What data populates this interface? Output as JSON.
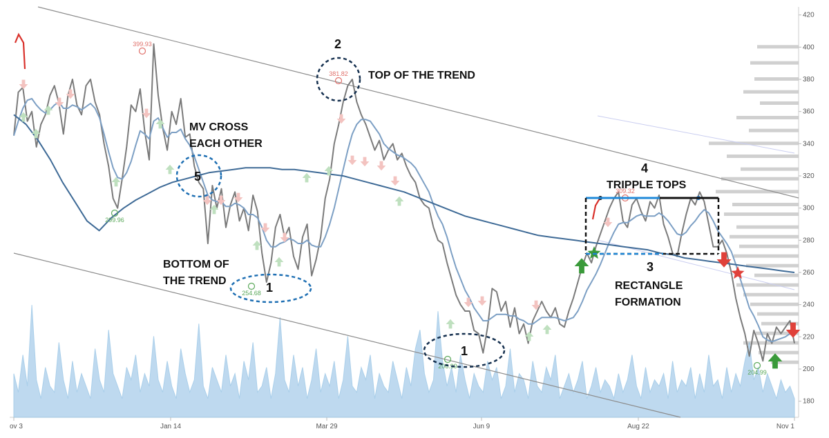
{
  "chart_data": {
    "type": "line",
    "title": "",
    "xlabel": "",
    "ylabel": "",
    "x_ticks": [
      "ov 3",
      "Jan 14",
      "Mar 29",
      "Jun 9",
      "Aug 22",
      "Nov 1"
    ],
    "ylim": [
      170,
      425
    ],
    "y_ticks": [
      "180",
      "200",
      "220",
      "240",
      "260",
      "280",
      "300",
      "320",
      "340",
      "360",
      "380",
      "400",
      "420"
    ],
    "grid": false,
    "legend": "none",
    "series": [
      {
        "role": "price",
        "color": "#7a7a7a",
        "values": [
          345,
          372,
          375,
          354,
          360,
          338,
          352,
          358,
          370,
          376,
          365,
          346,
          370,
          380,
          364,
          358,
          376,
          380,
          366,
          358,
          340,
          326,
          306,
          300,
          318,
          338,
          364,
          360,
          374,
          348,
          330,
          402,
          370,
          350,
          336,
          360,
          352,
          368,
          344,
          346,
          326,
          316,
          312,
          278,
          314,
          300,
          312,
          288,
          302,
          310,
          292,
          300,
          286,
          308,
          298,
          272,
          254,
          266,
          288,
          296,
          282,
          288,
          270,
          262,
          282,
          290,
          258,
          268,
          282,
          306,
          318,
          340,
          352,
          366,
          376,
          380,
          366,
          358,
          352,
          344,
          336,
          342,
          330,
          336,
          340,
          330,
          334,
          326,
          320,
          316,
          306,
          302,
          300,
          288,
          280,
          278,
          266,
          256,
          246,
          240,
          236,
          236,
          224,
          222,
          210,
          226,
          250,
          248,
          236,
          242,
          226,
          238,
          222,
          228,
          216,
          230,
          236,
          242,
          236,
          232,
          238,
          228,
          226,
          236,
          244,
          254,
          264,
          272,
          266,
          276,
          284,
          292,
          300,
          306,
          310,
          292,
          288,
          302,
          306,
          298,
          292,
          304,
          300,
          308,
          290,
          282,
          272,
          270,
          284,
          296,
          306,
          302,
          310,
          304,
          290,
          276,
          276,
          280,
          272,
          260,
          244,
          232,
          222,
          208,
          224,
          216,
          205,
          222,
          216,
          226,
          222,
          226,
          230,
          216
        ]
      },
      {
        "role": "fast-moving-average",
        "color": "#7c9fc4",
        "values": [
          345,
          354,
          362,
          367,
          368,
          364,
          361,
          359,
          361,
          364,
          366,
          362,
          362,
          364,
          363,
          361,
          363,
          365,
          362,
          356,
          346,
          335,
          325,
          319,
          318,
          322,
          329,
          339,
          348,
          346,
          343,
          354,
          356,
          350,
          344,
          347,
          347,
          349,
          343,
          339,
          332,
          324,
          316,
          308,
          305,
          304,
          304,
          301,
          301,
          303,
          302,
          300,
          296,
          296,
          294,
          288,
          280,
          276,
          276,
          278,
          279,
          281,
          280,
          278,
          278,
          280,
          277,
          276,
          276,
          282,
          290,
          300,
          312,
          324,
          336,
          346,
          352,
          355,
          355,
          354,
          350,
          346,
          340,
          337,
          335,
          333,
          332,
          330,
          328,
          325,
          320,
          315,
          310,
          302,
          295,
          290,
          282,
          272,
          263,
          256,
          249,
          244,
          238,
          234,
          230,
          230,
          232,
          234,
          234,
          234,
          233,
          233,
          231,
          230,
          228,
          228,
          230,
          232,
          232,
          232,
          232,
          231,
          230,
          231,
          232,
          236,
          242,
          249,
          254,
          259,
          265,
          272,
          279,
          285,
          290,
          291,
          291,
          293,
          295,
          296,
          295,
          295,
          295,
          297,
          295,
          292,
          288,
          284,
          283,
          285,
          289,
          292,
          296,
          299,
          297,
          292,
          286,
          282,
          278,
          273,
          265,
          256,
          247,
          238,
          233,
          227,
          220,
          218,
          217,
          218,
          219,
          220,
          222,
          222
        ]
      },
      {
        "role": "slow-moving-average",
        "color": "#3e6a96",
        "values": [
          358,
          352,
          342,
          330,
          316,
          304,
          292,
          286,
          294,
          300,
          305,
          309,
          313,
          316,
          318,
          320,
          322,
          323,
          324,
          325,
          325,
          325,
          324,
          324,
          323,
          322,
          321,
          320,
          318,
          316,
          314,
          312,
          310,
          307,
          304,
          301,
          298,
          295,
          293,
          291,
          289,
          287,
          285,
          283,
          282,
          281,
          280,
          279,
          278,
          277,
          276,
          275,
          274,
          272,
          271,
          269,
          268,
          267,
          266,
          265,
          264,
          263,
          262,
          261,
          260
        ],
        "x_start": 0,
        "x_end": 1
      }
    ],
    "volume": {
      "color": "#a9cdea",
      "values": [
        14,
        8,
        20,
        10,
        36,
        12,
        6,
        16,
        10,
        8,
        24,
        12,
        6,
        18,
        8,
        14,
        10,
        6,
        22,
        12,
        8,
        28,
        14,
        10,
        6,
        16,
        12,
        20,
        8,
        14,
        10,
        26,
        12,
        8,
        18,
        10,
        6,
        22,
        14,
        8,
        12,
        30,
        10,
        6,
        16,
        12,
        8,
        20,
        10,
        14,
        6,
        18,
        12,
        24,
        8,
        10,
        16,
        6,
        14,
        32,
        12,
        8,
        20,
        10,
        16,
        6,
        12,
        22,
        8,
        14,
        10,
        18,
        6,
        12,
        26,
        10,
        8,
        16,
        12,
        20,
        6,
        14,
        10,
        8,
        18,
        12,
        6,
        16,
        10,
        22,
        28,
        14,
        8,
        12,
        34,
        18,
        10,
        16,
        8,
        20,
        12,
        6,
        14,
        10,
        8,
        18,
        12,
        16,
        6,
        10,
        22,
        8,
        14,
        12,
        6,
        18,
        10,
        8,
        16,
        12,
        20,
        6,
        10,
        14,
        8,
        12,
        18,
        6,
        10,
        16,
        8,
        12,
        10,
        6,
        14,
        8,
        12,
        20,
        10,
        6,
        16,
        8,
        12,
        10,
        14,
        6,
        18,
        8,
        12,
        10,
        16,
        6,
        14,
        8,
        20,
        10,
        12,
        6,
        16,
        8,
        14,
        10,
        18,
        24,
        12,
        16,
        8,
        14,
        10,
        6,
        12,
        8,
        10,
        6
      ]
    },
    "point_labels": [
      {
        "text": "399.93",
        "color": "#e0706a"
      },
      {
        "text": "381.82",
        "color": "#e0706a"
      },
      {
        "text": "309.32",
        "color": "#e0706a"
      },
      {
        "text": "299.96",
        "color": "#5aa85a"
      },
      {
        "text": "254.68",
        "color": "#5aa85a"
      },
      {
        "text": "206.99",
        "color": "#5aa85a"
      },
      {
        "text": "204.99",
        "color": "#5aa85a"
      }
    ],
    "annotations": {
      "label_2": "2",
      "top_of_trend": "TOP OF THE TREND",
      "mv_cross_line1": "MV CROSS",
      "mv_cross_line2": "EACH OTHER",
      "label_5": "5",
      "bottom_line1": "BOTTOM OF",
      "bottom_line2": "THE TREND",
      "label_1a": "1",
      "label_1b": "1",
      "label_4": "4",
      "tripple_tops": "TRIPPLE TOPS",
      "label_3": "3",
      "rectangle_line1": "RECTANGLE",
      "rectangle_line2": "FORMATION"
    },
    "colors": {
      "buy_marker": "#3a9a3a",
      "sell_marker": "#e0413a",
      "buy_marker_faint": "#bfe0bf",
      "sell_marker_faint": "#f3c3c0",
      "trend_channel": "#8c8c8c",
      "circle_outline": "#1e6fb3",
      "circle_outline_dark": "#15304f",
      "rectangle_box": "#111111",
      "triple_top_line": "#1e88d8",
      "volume_profile": "#c8c8c8"
    }
  }
}
